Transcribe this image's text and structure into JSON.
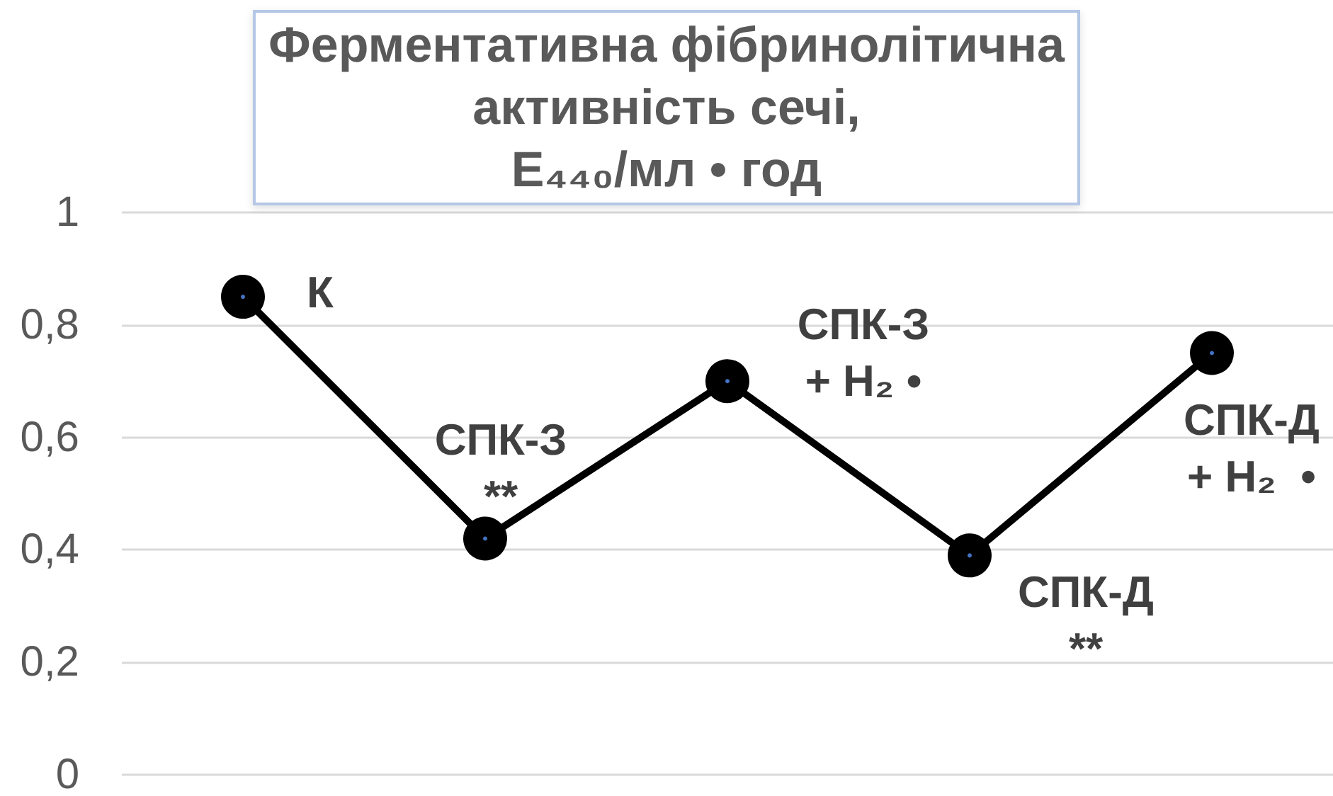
{
  "chart_data": {
    "type": "line",
    "title": "Ферментативна фібринолітична\nактивність сечі,\nЕ₄₄₀/мл • год",
    "categories": [
      null,
      null,
      null,
      null,
      null
    ],
    "series": [
      {
        "color": "#000000",
        "values": [
          0.85,
          0.42,
          0.7,
          0.39,
          0.75
        ]
      }
    ],
    "ylim": [
      0,
      1
    ],
    "yticks": [
      0,
      {
        "value": 0.2,
        "label": "0,2"
      },
      {
        "value": 0.4,
        "label": "0,4"
      },
      {
        "value": 0.6,
        "label": "0,6"
      },
      {
        "value": 0.8,
        "label": "0,8"
      },
      1
    ],
    "grid": "y",
    "marker": "circle",
    "line_style": "solid",
    "tick_labels": "y",
    "annotations": [
      "К",
      "СПК-З\n**",
      "СПК-З\n+ H₂ •",
      "СПК-Д\n**",
      "СПК-Д\n+ H₂  •"
    ]
  }
}
